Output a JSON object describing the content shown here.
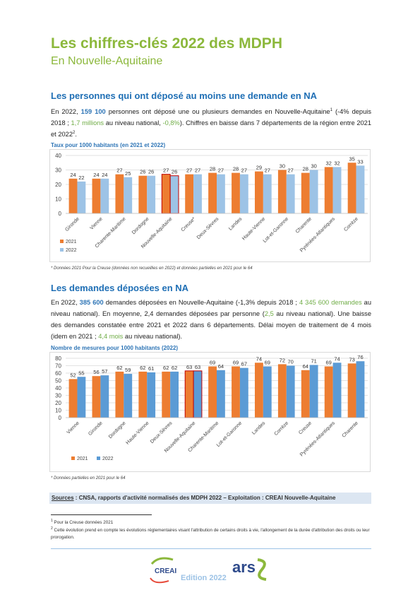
{
  "header": {
    "title": "Les chiffres-clés 2022 des MDPH",
    "subtitle": "En Nouvelle-Aquitaine"
  },
  "sections": [
    {
      "heading": "Les personnes qui ont déposé au moins une demande en NA",
      "paragraph": [
        {
          "text": "En 2022, "
        },
        {
          "text": "159 100",
          "color": "#2e75b6",
          "bold": true
        },
        {
          "text": " personnes ont déposé une ou plusieurs demandes en Nouvelle-Aquitaine"
        },
        {
          "text": "1",
          "sup": true
        },
        {
          "text": " (-4% depuis 2018 ; "
        },
        {
          "text": "1,7 millions",
          "color": "#70ad47"
        },
        {
          "text": " au niveau national, "
        },
        {
          "text": "-0,8%",
          "color": "#70ad47"
        },
        {
          "text": "). Chiffres en baisse dans 7 départements de la région entre 2021 et 2022"
        },
        {
          "text": "2",
          "sup": true
        },
        {
          "text": "."
        }
      ]
    },
    {
      "heading": "Les demandes déposées en NA",
      "paragraph": [
        {
          "text": "En 2022, "
        },
        {
          "text": "385 600",
          "color": "#2e75b6",
          "bold": true
        },
        {
          "text": " demandes déposées en Nouvelle-Aquitaine (-1,3% depuis 2018 ; "
        },
        {
          "text": "4 345 600 demandes",
          "color": "#70ad47"
        },
        {
          "text": " au niveau national). En moyenne, 2,4 demandes déposées par personne ("
        },
        {
          "text": "2,5",
          "color": "#70ad47"
        },
        {
          "text": " au niveau national). Une baisse des demandes constatée entre 2021 et 2022 dans 6 départements. Délai moyen de traitement de 4 mois (idem en 2021 ; "
        },
        {
          "text": "4,4 mois",
          "color": "#70ad47"
        },
        {
          "text": " au niveau national)."
        }
      ]
    }
  ],
  "chart_data": [
    {
      "type": "bar",
      "title": "Taux pour 1000 habitants (en 2021 et 2022)",
      "categories": [
        "Gironde",
        "Vienne",
        "Charente-Maritime",
        "Dordogne",
        "Nouvelle-Aquitaine",
        "Creuse*",
        "Deux-Sèvres",
        "Landes",
        "Haute-Vienne",
        "Lot-et-Garonne",
        "Charente",
        "Pyrénées-Atlantiques",
        "Corrèze"
      ],
      "series": [
        {
          "name": "2021",
          "color": "#ed7d31",
          "values": [
            24,
            24,
            27,
            26,
            27,
            27,
            28,
            28,
            29,
            30,
            28,
            32,
            35
          ]
        },
        {
          "name": "2022",
          "color": "#9dc3e6",
          "values": [
            22,
            24,
            25,
            26,
            26,
            27,
            27,
            27,
            27,
            27,
            30,
            32,
            33
          ]
        }
      ],
      "ylim": [
        0,
        40
      ],
      "yticks": [
        0,
        10,
        20,
        30,
        40
      ],
      "grid": true,
      "highlight_index": 4,
      "highlight_color": "#c00000",
      "legend_layout": "vertical",
      "note": "* Données 2021 Pour la Creuse (données non recueillies en 2022) et données partielles en 2021 pour le 64"
    },
    {
      "type": "bar",
      "title": "Nombre de mesures pour 1000 habitants (2022)",
      "categories": [
        "Vienne",
        "Gironde",
        "Dordogne",
        "Haute-Vienne",
        "Deux-Sèvres",
        "Nouvelle-Aquitaine",
        "Charente-Maritime",
        "Lot-et-Garonne",
        "Landes",
        "Corrèze",
        "Creuse",
        "Pyrénées-Atlantiques",
        "Charente"
      ],
      "series": [
        {
          "name": "2021",
          "color": "#ed7d31",
          "values": [
            52,
            56,
            62,
            62,
            62,
            63,
            69,
            69,
            74,
            72,
            64,
            69,
            73
          ]
        },
        {
          "name": "2022",
          "color": "#5b9bd5",
          "values": [
            55,
            57,
            59,
            61,
            62,
            63,
            64,
            67,
            69,
            70,
            71,
            74,
            76
          ]
        }
      ],
      "ylim": [
        0,
        80
      ],
      "yticks": [
        0,
        10,
        20,
        30,
        40,
        50,
        60,
        70,
        80
      ],
      "grid": true,
      "highlight_index": 5,
      "highlight_color": "#c00000",
      "legend_layout": "horizontal",
      "note": "* Données partielles en 2021 pour le 64"
    }
  ],
  "sources": {
    "label": "Sources",
    "text": " : CNSA, rapports d'activité normalisés des MDPH 2022 – Exploitation : CREAI Nouvelle-Aquitaine"
  },
  "footnotes": [
    {
      "mark": "1",
      "text": " Pour la Creuse données 2021"
    },
    {
      "mark": "2",
      "text": " Cette évolution prend en compte les évolutions réglementaires visant l'attribution de certains droits à vie, l'allongement de la durée d'attribution des droits ou leur prorogation."
    }
  ],
  "footer": {
    "logo_left": "CREAI",
    "logo_right": "ars",
    "edition": "Edition 2022"
  }
}
